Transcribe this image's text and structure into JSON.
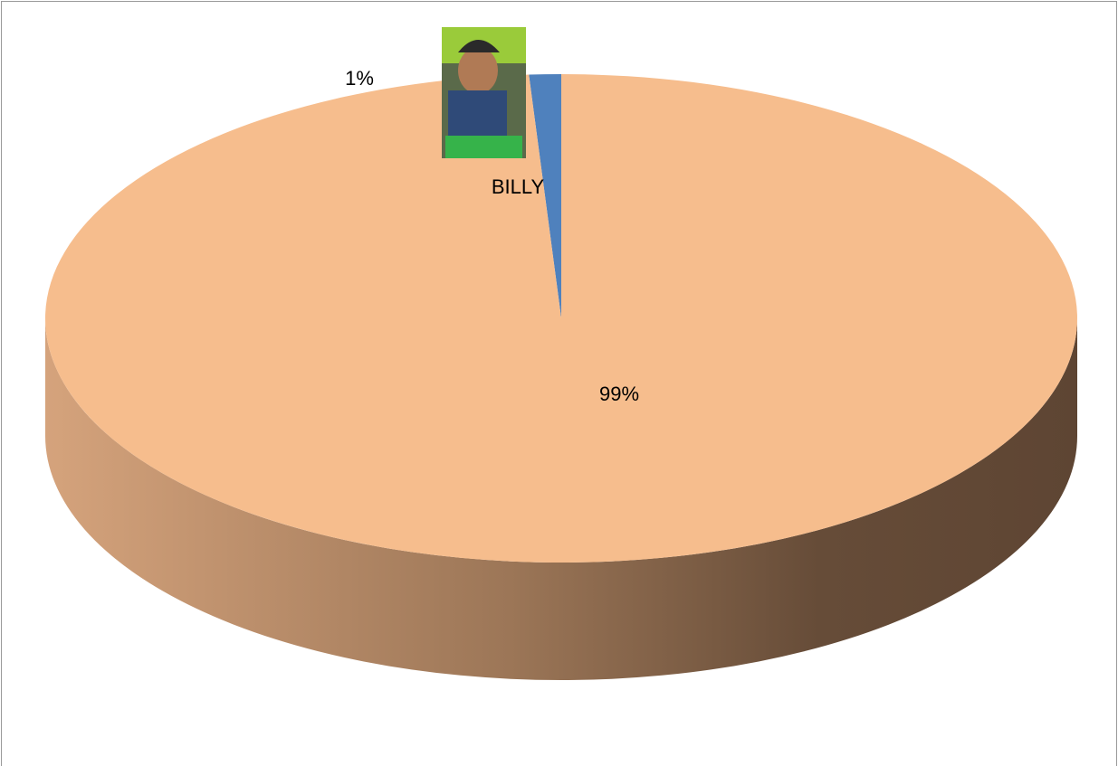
{
  "chart_data": {
    "type": "pie",
    "categories": [
      "BILLY",
      null
    ],
    "values": [
      1,
      99
    ],
    "value_labels": [
      "1%",
      "99%"
    ],
    "colors": [
      "#4f81bd",
      "#f6bd8d"
    ]
  }
}
